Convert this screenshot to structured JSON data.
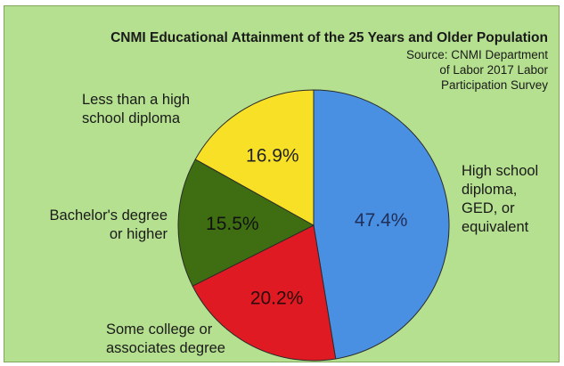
{
  "chart_data": {
    "type": "pie",
    "title": "CNMI Educational Attainment of the 25 Years and Older Population",
    "source": [
      "Source: CNMI Department",
      "of Labor 2017 Labor",
      "Participation Survey"
    ],
    "background_color": "#b5e08f",
    "slices": [
      {
        "label_lines": [
          "High school",
          "diploma,",
          "GED, or",
          "equivalent"
        ],
        "value": 47.4,
        "value_label": "47.4%",
        "color": "#4a90e2",
        "value_text_color": "#1f2f5a"
      },
      {
        "label_lines": [
          "Some college or",
          "associates degree"
        ],
        "value": 20.2,
        "value_label": "20.2%",
        "color": "#e01a22",
        "value_text_color": "#2a0a0a"
      },
      {
        "label_lines": [
          "Bachelor's degree",
          "or higher"
        ],
        "value": 15.5,
        "value_label": "15.5%",
        "color": "#3f6e12",
        "value_text_color": "#111111"
      },
      {
        "label_lines": [
          "Less than a high",
          "school diploma"
        ],
        "value": 16.9,
        "value_label": "16.9%",
        "color": "#f7e025",
        "value_text_color": "#222222"
      }
    ]
  }
}
